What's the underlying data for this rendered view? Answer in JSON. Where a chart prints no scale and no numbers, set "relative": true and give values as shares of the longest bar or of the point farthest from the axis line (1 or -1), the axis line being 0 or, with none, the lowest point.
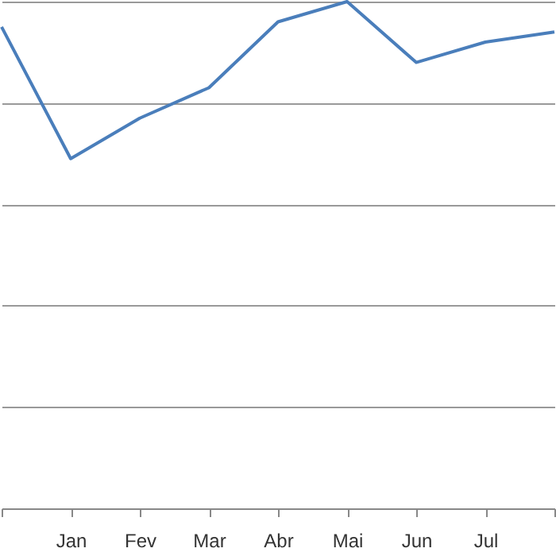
{
  "chart_data": {
    "type": "line",
    "relative": true,
    "categories": [
      null,
      "Jan",
      "Fev",
      "Mar",
      "Abr",
      "Mai",
      "Jun",
      "Jul",
      null
    ],
    "series": [
      {
        "color": "#4a7ebb",
        "values": [
          0.95,
          0.69,
          0.77,
          0.83,
          0.96,
          1,
          0.88,
          0.92,
          0.94
        ]
      }
    ],
    "grid": "y",
    "marker": "none",
    "line_style": "solid",
    "legend": false
  }
}
